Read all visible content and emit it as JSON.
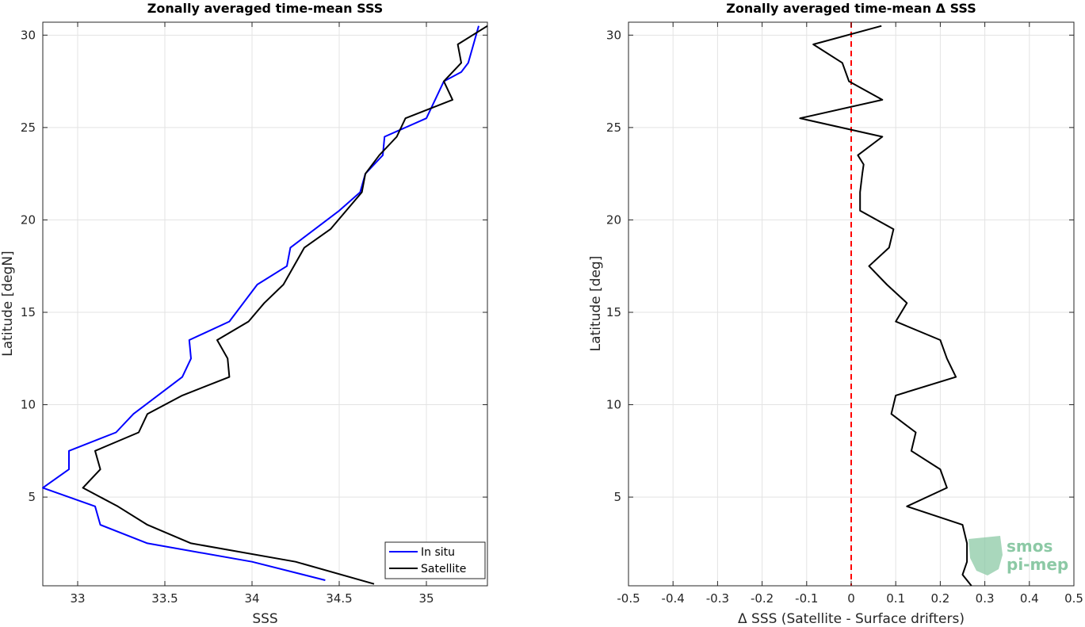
{
  "chart_data": [
    {
      "type": "line",
      "title": "Zonally averaged time-mean SSS",
      "xlabel": "SSS",
      "ylabel": "Latitude [degN]",
      "xlim": [
        32.8,
        35.35
      ],
      "ylim": [
        0.2,
        30.7
      ],
      "xticks": [
        33,
        33.5,
        34,
        34.5,
        35
      ],
      "xtick_labels": [
        "33",
        "33.5",
        "34",
        "34.5",
        "35"
      ],
      "yticks": [
        5,
        10,
        15,
        20,
        25,
        30
      ],
      "ytick_labels": [
        "5",
        "10",
        "15",
        "20",
        "25",
        "30"
      ],
      "grid": true,
      "legend_position": "bottom-right",
      "series": [
        {
          "name": "In situ",
          "color": "#0000ff",
          "x": [
            34.42,
            34.0,
            33.4,
            33.13,
            33.1,
            32.8,
            32.95,
            32.95,
            33.22,
            33.32,
            33.6,
            33.65,
            33.64,
            33.87,
            34.03,
            34.2,
            34.22,
            34.5,
            34.62,
            34.65,
            34.75,
            34.76,
            35.0,
            35.05,
            35.1,
            35.2,
            35.24,
            35.27,
            35.3
          ],
          "y": [
            0.5,
            1.5,
            2.5,
            3.5,
            4.5,
            5.5,
            6.5,
            7.5,
            8.5,
            9.5,
            11.5,
            12.5,
            13.5,
            14.5,
            16.5,
            17.5,
            18.5,
            20.5,
            21.5,
            22.5,
            23.5,
            24.5,
            25.5,
            26.5,
            27.5,
            28.0,
            28.5,
            29.5,
            30.5
          ]
        },
        {
          "name": "Satellite",
          "color": "#000000",
          "x": [
            34.7,
            34.25,
            33.65,
            33.4,
            33.23,
            33.03,
            33.13,
            33.1,
            33.35,
            33.4,
            33.6,
            33.87,
            33.86,
            33.8,
            33.98,
            34.07,
            34.18,
            34.3,
            34.45,
            34.63,
            34.65,
            34.73,
            34.83,
            34.88,
            35.15,
            35.1,
            35.2,
            35.18,
            35.35
          ],
          "y": [
            0.3,
            1.5,
            2.5,
            3.5,
            4.5,
            5.5,
            6.5,
            7.5,
            8.5,
            9.5,
            10.5,
            11.5,
            12.5,
            13.5,
            14.5,
            15.5,
            16.5,
            18.5,
            19.5,
            21.5,
            22.5,
            23.5,
            24.5,
            25.5,
            26.5,
            27.5,
            28.5,
            29.5,
            30.5
          ]
        }
      ]
    },
    {
      "type": "line",
      "title": "Zonally averaged time-mean Δ SSS",
      "xlabel": "Δ SSS (Satellite - Surface drifters)",
      "ylabel": "Latitude [deg]",
      "xlim": [
        -0.5,
        0.5
      ],
      "ylim": [
        0.2,
        30.7
      ],
      "xticks": [
        -0.5,
        -0.4,
        -0.3,
        -0.2,
        -0.1,
        0,
        0.1,
        0.2,
        0.3,
        0.4,
        0.5
      ],
      "xtick_labels": [
        "-0.5",
        "-0.4",
        "-0.3",
        "-0.2",
        "-0.1",
        "0",
        "0.1",
        "0.2",
        "0.3",
        "0.4",
        "0.5"
      ],
      "yticks": [
        5,
        10,
        15,
        20,
        25,
        30
      ],
      "ytick_labels": [
        "5",
        "10",
        "15",
        "20",
        "25",
        "30"
      ],
      "grid": true,
      "zero_line": {
        "x": 0,
        "color": "#ff0000",
        "style": "dashed"
      },
      "series": [
        {
          "color": "#000000",
          "x": [
            0.27,
            0.25,
            0.26,
            0.26,
            0.25,
            0.125,
            0.215,
            0.2,
            0.135,
            0.145,
            0.09,
            0.1,
            0.235,
            0.215,
            0.2,
            0.1,
            0.125,
            0.08,
            0.04,
            0.085,
            0.095,
            0.02,
            0.02,
            0.025,
            0.028,
            0.015,
            0.07,
            -0.115,
            0.07,
            -0.005,
            -0.02,
            -0.085,
            0.068
          ],
          "y": [
            0.2,
            0.8,
            1.5,
            2.5,
            3.5,
            4.5,
            5.5,
            6.5,
            7.5,
            8.5,
            9.5,
            10.5,
            11.5,
            12.5,
            13.5,
            14.5,
            15.5,
            16.5,
            17.5,
            18.5,
            19.5,
            20.5,
            21.5,
            22.5,
            23.0,
            23.5,
            24.5,
            25.5,
            26.5,
            27.5,
            28.5,
            29.5,
            30.5
          ]
        }
      ]
    }
  ],
  "logo": {
    "line1": "smos",
    "line2": "pi-mep",
    "color": "#8cc9a5"
  }
}
